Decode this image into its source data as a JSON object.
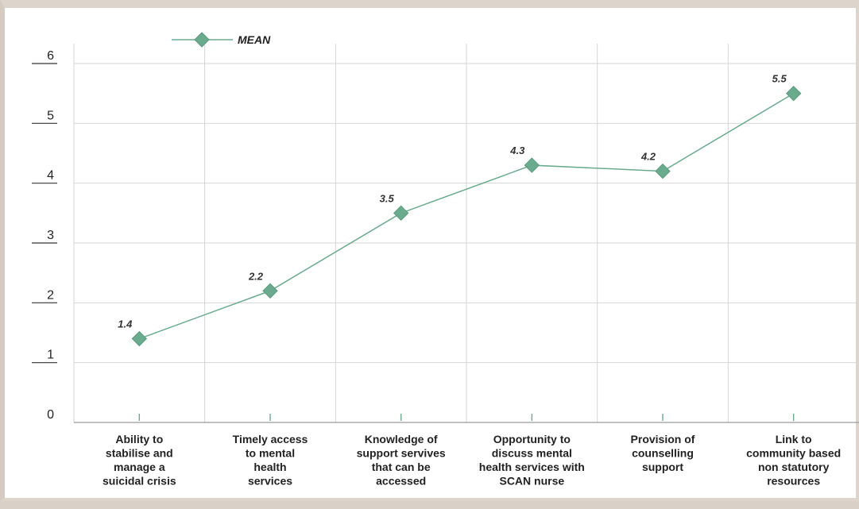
{
  "chart_data": {
    "type": "line",
    "categories": [
      [
        "Ability to",
        "stabilise and",
        "manage a",
        "suicidal crisis"
      ],
      [
        "Timely access",
        "to mental",
        "health",
        "services"
      ],
      [
        "Knowledge of",
        "support servives",
        "that can be",
        "accessed"
      ],
      [
        "Opportunity to",
        "discuss mental",
        "health services with",
        "SCAN nurse"
      ],
      [
        "Provision of",
        "counselling",
        "support"
      ],
      [
        "Link to",
        "community based",
        "non statutory",
        "resources"
      ]
    ],
    "series": [
      {
        "name": "MEAN",
        "values": [
          1.4,
          2.2,
          3.5,
          4.3,
          4.2,
          5.5
        ],
        "labels": [
          "1.4",
          "2.2",
          "3.5",
          "4.3",
          "4.2",
          "5.5"
        ]
      }
    ],
    "yticks": [
      "0",
      "1",
      "2",
      "3",
      "4",
      "5",
      "6"
    ],
    "ylim": [
      0,
      6
    ],
    "grid": true,
    "legend": "top-left",
    "colors": {
      "line": "#6aab8e",
      "marker": "#6aab8e",
      "grid": "#d6d6d6",
      "axis": "#333333"
    }
  }
}
